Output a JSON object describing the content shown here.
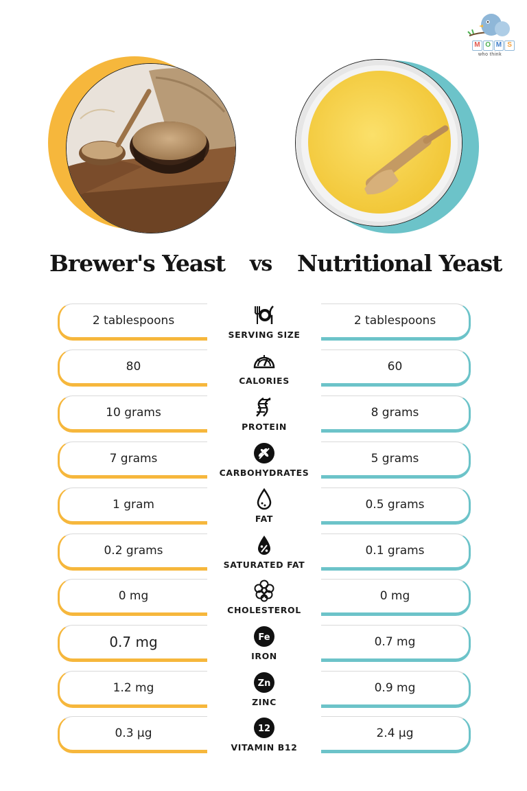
{
  "brand": {
    "logo_letters": [
      "M",
      "O",
      "M",
      "S"
    ],
    "logo_tagline": "who think"
  },
  "title": {
    "left": "Brewer's Yeast",
    "vs": "vs",
    "right": "Nutritional Yeast"
  },
  "colors": {
    "brewers_accent": "#f6b73c",
    "nutritional_accent": "#6cc3c9"
  },
  "rows": [
    {
      "label": "SERVING SIZE",
      "icon": "fork-knife-plate-icon",
      "brewers": "2 tablespoons",
      "nutritional": "2 tablespoons"
    },
    {
      "label": "CALORIES",
      "icon": "gauge-icon",
      "brewers": "80",
      "nutritional": "60"
    },
    {
      "label": "PROTEIN",
      "icon": "dna-icon",
      "brewers": "10 grams",
      "nutritional": "8 grams"
    },
    {
      "label": "CARBOHYDRATES",
      "icon": "wheat-icon",
      "brewers": "7 grams",
      "nutritional": "5 grams"
    },
    {
      "label": "FAT",
      "icon": "drop-icon",
      "brewers": "1 gram",
      "nutritional": "0.5 grams"
    },
    {
      "label": "SATURATED FAT",
      "icon": "percent-drop-icon",
      "brewers": "0.2 grams",
      "nutritional": "0.1 grams"
    },
    {
      "label": "CHOLESTEROL",
      "icon": "molecule-icon",
      "brewers": "0 mg",
      "nutritional": "0 mg"
    },
    {
      "label": "IRON",
      "icon": "fe-icon",
      "icon_text": "Fe",
      "brewers": "0.7 mg",
      "nutritional": "0.7 mg"
    },
    {
      "label": "ZINC",
      "icon": "zn-icon",
      "icon_text": "Zn",
      "brewers": "1.2 mg",
      "nutritional": "0.9 mg"
    },
    {
      "label": "VITAMIN B12",
      "icon": "b12-icon",
      "icon_text": "12",
      "brewers": "0.3 µg",
      "nutritional": "2.4 µg"
    }
  ]
}
